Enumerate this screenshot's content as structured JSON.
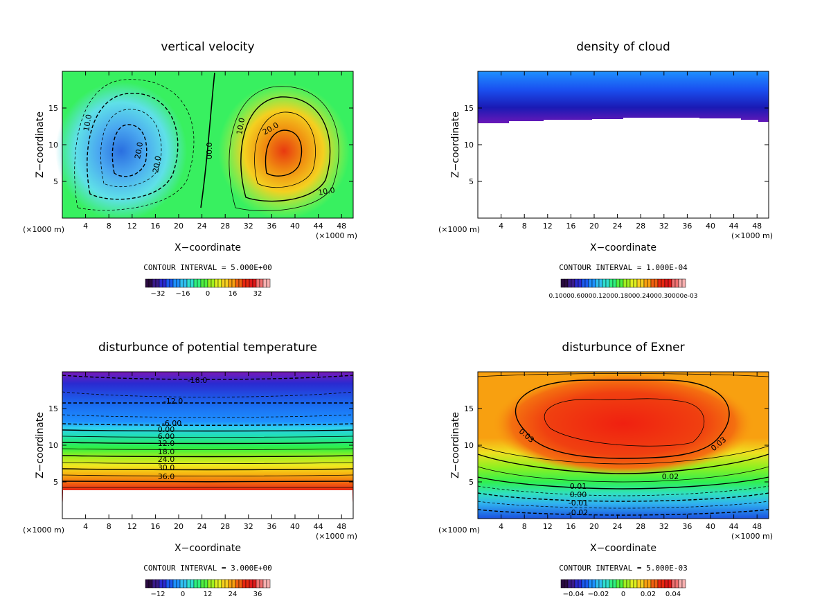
{
  "panels": [
    {
      "title": "vertical velocity",
      "xlabel": "X−coordinate",
      "ylabel": "Z−coordinate",
      "unit": "(×1000 m)",
      "contour_interval": "CONTOUR INTERVAL = 5.000E+00",
      "colorbar_ticks": [
        "−32",
        "−16",
        "0",
        "16",
        "32"
      ],
      "contour_labels": [
        "10.0",
        "20.0",
        "20.0",
        "00.0",
        "10.0",
        "20.0",
        "10.0"
      ]
    },
    {
      "title": "density of cloud",
      "xlabel": "X−coordinate",
      "ylabel": "Z−coordinate",
      "unit": "(×1000 m)",
      "contour_interval": "CONTOUR INTERVAL = 1.000E-04",
      "colorbar_ticks_text": "0.10000.60000.12000.18000.24000.30000e-03"
    },
    {
      "title": "disturbunce of potential temperature",
      "xlabel": "X−coordinate",
      "ylabel": "Z−coordinate",
      "unit": "(×1000 m)",
      "contour_interval": "CONTOUR INTERVAL = 3.000E+00",
      "colorbar_ticks": [
        "−12",
        "0",
        "12",
        "24",
        "36"
      ],
      "contour_labels": [
        "-18.0",
        "-12.0",
        "-6.00",
        "0.00",
        "6.00",
        "12.0",
        "18.0",
        "24.0",
        "30.0",
        "36.0"
      ]
    },
    {
      "title": "disturbunce of Exner",
      "xlabel": "X−coordinate",
      "ylabel": "Z−coordinate",
      "unit": "(×1000 m)",
      "contour_interval": "CONTOUR INTERVAL = 5.000E-03",
      "colorbar_ticks": [
        "−0.04",
        "−0.02",
        "0",
        "0.02",
        "0.04"
      ],
      "contour_labels": [
        "0.03",
        "0.03",
        "0.02",
        "0.01",
        "0.00",
        "-0.01",
        "-0.02"
      ]
    }
  ],
  "chart_data": [
    {
      "type": "heatmap",
      "title": "vertical velocity",
      "xlabel": "X−coordinate",
      "ylabel": "Z−coordinate",
      "x_ticks": [
        4,
        8,
        12,
        16,
        20,
        24,
        28,
        32,
        36,
        40,
        44,
        48
      ],
      "y_ticks": [
        5,
        10,
        15
      ],
      "xlim": [
        0,
        50
      ],
      "ylim": [
        0,
        20
      ],
      "colorscale_range": [
        -36,
        36
      ],
      "contour_interval": 5.0,
      "features": [
        {
          "kind": "downdraft",
          "center_x": 10,
          "center_z": 8.5,
          "min": -30
        },
        {
          "kind": "updraft",
          "center_x": 37,
          "center_z": 9,
          "max": 30
        }
      ]
    },
    {
      "type": "heatmap",
      "title": "density of cloud",
      "xlabel": "X−coordinate",
      "ylabel": "Z−coordinate",
      "x_ticks": [
        4,
        8,
        12,
        16,
        20,
        24,
        28,
        32,
        36,
        40,
        44,
        48
      ],
      "y_ticks": [
        5,
        10,
        15
      ],
      "xlim": [
        0,
        50
      ],
      "ylim": [
        0,
        20
      ],
      "contour_interval": 0.0001,
      "cloud_base_z": 13.2
    },
    {
      "type": "heatmap",
      "title": "disturbunce of potential temperature",
      "xlabel": "X−coordinate",
      "ylabel": "Z−coordinate",
      "x_ticks": [
        4,
        8,
        12,
        16,
        20,
        24,
        28,
        32,
        36,
        40,
        44,
        48
      ],
      "y_ticks": [
        5,
        10,
        15
      ],
      "xlim": [
        0,
        50
      ],
      "ylim": [
        0,
        20
      ],
      "colorscale_range": [
        -18,
        42
      ],
      "contour_interval": 3.0,
      "contour_levels": [
        {
          "label": "-18.0",
          "z": 19.0
        },
        {
          "label": "-12.0",
          "z": 16.0
        },
        {
          "label": "-6.00",
          "z": 12.9
        },
        {
          "label": "0.00",
          "z": 12.0
        },
        {
          "label": "6.00",
          "z": 11.2
        },
        {
          "label": "12.0",
          "z": 10.1
        },
        {
          "label": "18.0",
          "z": 9.1
        },
        {
          "label": "24.0",
          "z": 7.8
        },
        {
          "label": "30.0",
          "z": 6.8
        },
        {
          "label": "36.0",
          "z": 5.7
        }
      ]
    },
    {
      "type": "heatmap",
      "title": "disturbunce of Exner",
      "xlabel": "X−coordinate",
      "ylabel": "Z−coordinate",
      "x_ticks": [
        4,
        8,
        12,
        16,
        20,
        24,
        28,
        32,
        36,
        40,
        44,
        48
      ],
      "y_ticks": [
        5,
        10,
        15
      ],
      "xlim": [
        0,
        50
      ],
      "ylim": [
        0,
        20
      ],
      "colorscale_range": [
        -0.04,
        0.04
      ],
      "contour_interval": 0.005,
      "contour_levels": [
        {
          "label": "0.03",
          "z": 11.5
        },
        {
          "label": "0.02",
          "z": 5.5
        },
        {
          "label": "0.01",
          "z": 4.0
        },
        {
          "label": "0.00",
          "z": 3.0
        },
        {
          "label": "-0.01",
          "z": 1.8
        },
        {
          "label": "-0.02",
          "z": 0.5
        }
      ]
    }
  ]
}
